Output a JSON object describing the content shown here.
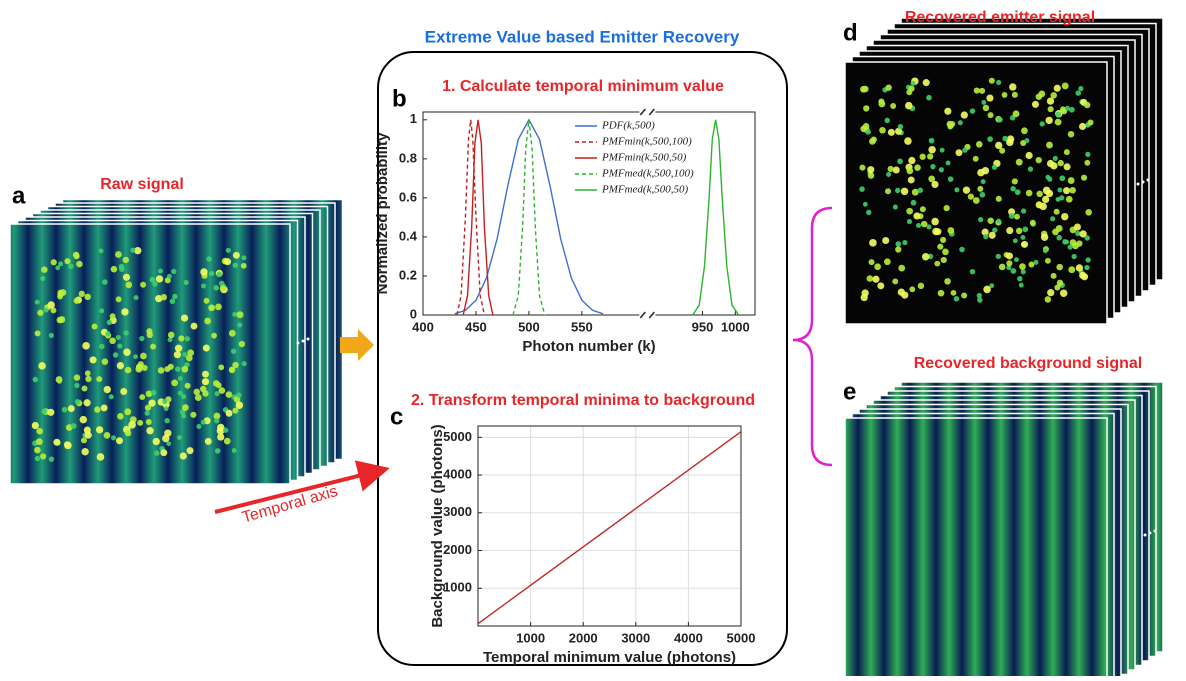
{
  "panel_labels": {
    "a": "a",
    "b": "b",
    "c": "c",
    "d": "d",
    "e": "e"
  },
  "raw_signal": "Raw signal",
  "temporal_axis": "Temporal axis",
  "method_title": "Extreme Value based Emitter Recovery",
  "recovered_emitter": "Recovered emitter signal",
  "recovered_background": "Recovered background signal",
  "chart_data": [
    {
      "type": "line",
      "title": "1. Calculate temporal minimum value",
      "xlabel": "Photon number (k)",
      "ylabel": "Normalized probability",
      "xlim": [
        400,
        1030
      ],
      "x_break": [
        600,
        885
      ],
      "xticks": [
        400,
        450,
        500,
        550,
        950,
        1000
      ],
      "ylim": [
        0,
        1.04
      ],
      "yticks": [
        0,
        0.2,
        0.4,
        0.6,
        0.8,
        1
      ],
      "legend": "upper right",
      "series": [
        {
          "name": "PDF(k,500)",
          "color": "#3f6fd0",
          "dash": false,
          "x": [
            430,
            440,
            450,
            460,
            470,
            480,
            490,
            500,
            510,
            520,
            530,
            540,
            550,
            560,
            570
          ],
          "values": [
            0.006,
            0.024,
            0.076,
            0.19,
            0.39,
            0.66,
            0.9,
            1,
            0.9,
            0.66,
            0.39,
            0.19,
            0.076,
            0.024,
            0.006
          ]
        },
        {
          "name": "PMFmin(k,500,100)",
          "color": "#c81e1e",
          "dash": true,
          "x": [
            432,
            436,
            440,
            443,
            445,
            447,
            450,
            454,
            458
          ],
          "values": [
            0,
            0.1,
            0.5,
            0.9,
            1,
            0.9,
            0.5,
            0.1,
            0
          ]
        },
        {
          "name": "PMFmin(k,500,50)",
          "color": "#c81e1e",
          "dash": false,
          "x": [
            438,
            442,
            446,
            449,
            452,
            455,
            458,
            462,
            466
          ],
          "values": [
            0,
            0.1,
            0.45,
            0.88,
            1,
            0.88,
            0.45,
            0.1,
            0
          ]
        },
        {
          "name": "PMFmed(k,500,100)",
          "color": "#2db52d",
          "dash": true,
          "x": [
            485,
            490,
            494,
            497,
            500,
            503,
            506,
            510,
            515
          ],
          "values": [
            0,
            0.1,
            0.45,
            0.85,
            1,
            0.85,
            0.45,
            0.1,
            0
          ]
        },
        {
          "name": "PMFmed(k,500,50)",
          "color": "#2db52d",
          "dash": false,
          "x": [
            935,
            945,
            953,
            960,
            965,
            970,
            975,
            980,
            987,
            995,
            1005
          ],
          "values": [
            0,
            0.05,
            0.25,
            0.6,
            0.9,
            1,
            0.9,
            0.6,
            0.25,
            0.05,
            0
          ]
        }
      ]
    },
    {
      "type": "line",
      "title": "2. Transform temporal minima to background",
      "xlabel": "Temporal minimum value (photons)",
      "ylabel": "Background value (photons)",
      "xlim": [
        0,
        5000
      ],
      "xticks": [
        1000,
        2000,
        3000,
        4000,
        5000
      ],
      "ylim": [
        0,
        5300
      ],
      "yticks": [
        1000,
        2000,
        3000,
        4000,
        5000
      ],
      "grid": true,
      "series": [
        {
          "color": "#c0282a",
          "dash": false,
          "x": [
            0,
            5000
          ],
          "values": [
            60,
            5150
          ]
        }
      ]
    }
  ]
}
